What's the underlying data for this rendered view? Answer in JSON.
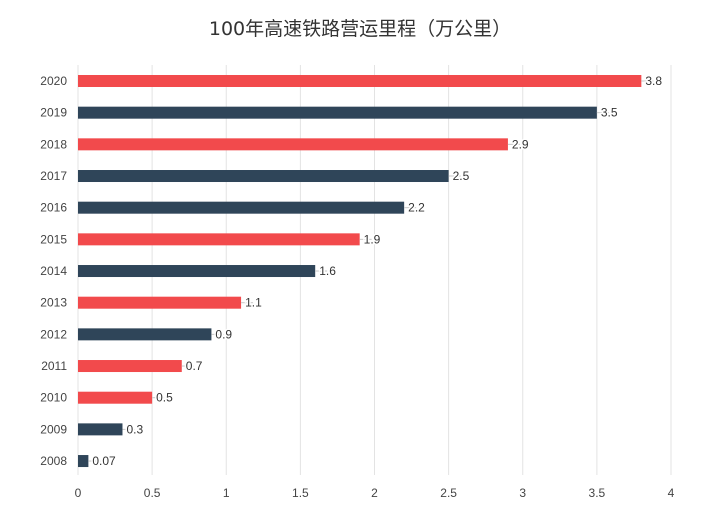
{
  "chart_data": {
    "type": "bar",
    "orientation": "horizontal",
    "title": "100年高速铁路营运里程（万公里）",
    "xlabel": "",
    "ylabel": "",
    "xlim": [
      0,
      4
    ],
    "xticks": [
      "0",
      "0.5",
      "1",
      "1.5",
      "2",
      "2.5",
      "3",
      "3.5",
      "4"
    ],
    "grid": true,
    "categories": [
      "2020",
      "2019",
      "2018",
      "2017",
      "2016",
      "2015",
      "2014",
      "2013",
      "2012",
      "2011",
      "2010",
      "2009",
      "2008"
    ],
    "values": [
      3.8,
      3.5,
      2.9,
      2.5,
      2.2,
      1.9,
      1.6,
      1.1,
      0.9,
      0.7,
      0.5,
      0.3,
      0.07
    ],
    "labels": [
      "3.8",
      "3.5",
      "2.9",
      "2.5",
      "2.2",
      "1.9",
      "1.6",
      "1.1",
      "0.9",
      "0.7",
      "0.5",
      "0.3",
      "0.07"
    ],
    "colors": [
      "#f24a4c",
      "#2f4559",
      "#f24a4c",
      "#2f4559",
      "#2f4559",
      "#f24a4c",
      "#2f4559",
      "#f24a4c",
      "#2f4559",
      "#f24a4c",
      "#f24a4c",
      "#2f4559",
      "#2f4559"
    ]
  }
}
